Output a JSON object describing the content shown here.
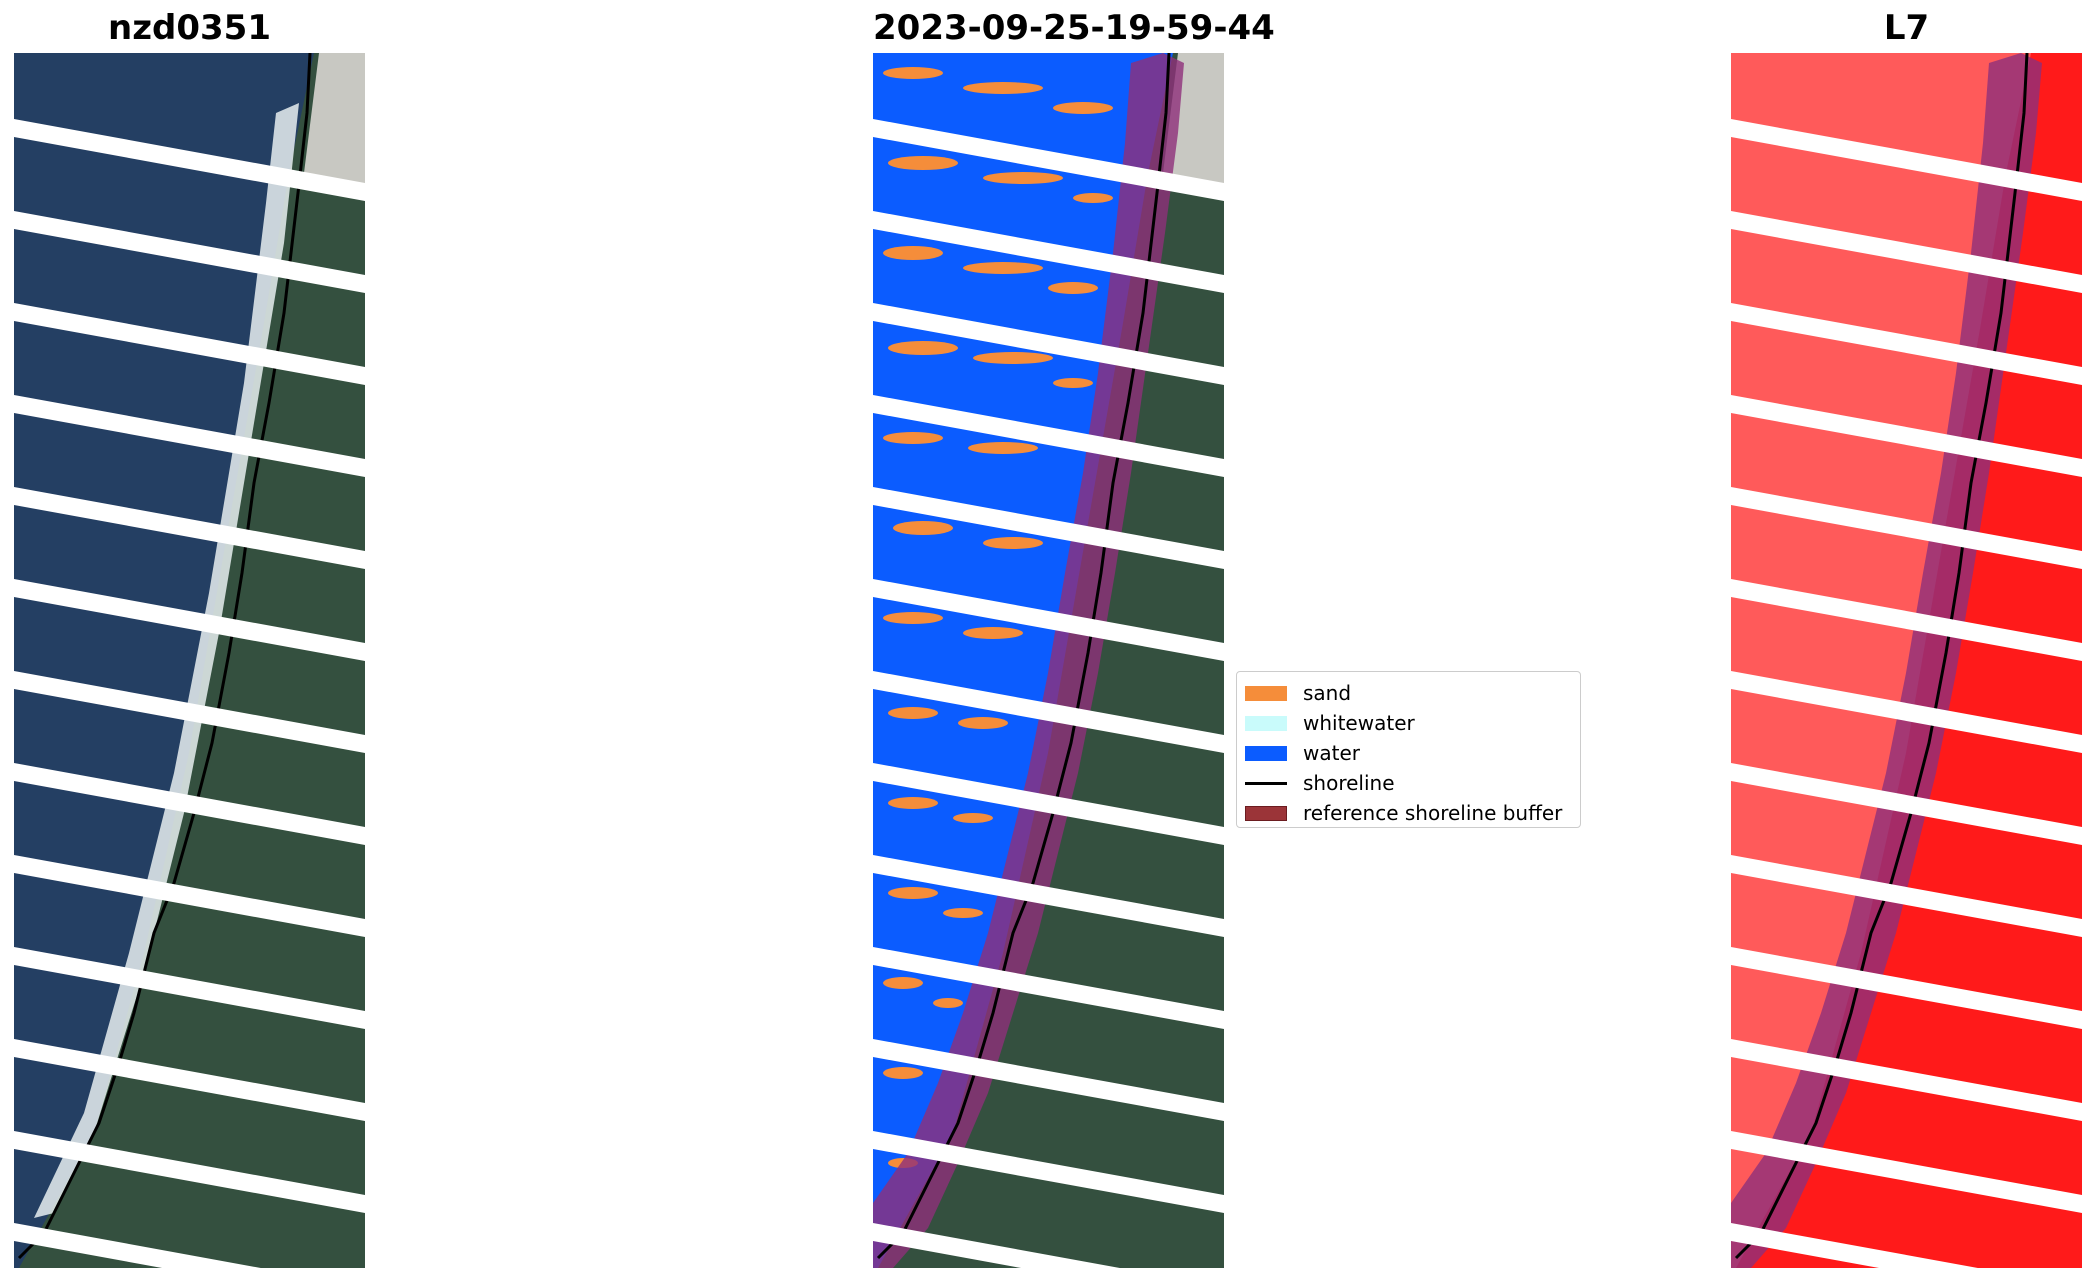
{
  "panels": [
    {
      "title": "nzd0351"
    },
    {
      "title": "2023-09-25-19-59-44"
    },
    {
      "title": "L7"
    }
  ],
  "legend": {
    "items": [
      {
        "label": "sand",
        "color": "#f58d3a",
        "kind": "patch"
      },
      {
        "label": "whitewater",
        "color": "#c9fbfb",
        "kind": "patch"
      },
      {
        "label": "water",
        "color": "#0b5cff",
        "kind": "patch"
      },
      {
        "label": "shoreline",
        "color": "#000000",
        "kind": "line"
      },
      {
        "label": "reference shoreline buffer",
        "color": "#9b3438",
        "kind": "patch"
      }
    ]
  },
  "colors": {
    "ocean": "#1e3a5f",
    "land": "#2f4a3c",
    "buffer": "#8e2f7a",
    "classified_water": "#0b5cff",
    "classified_sand": "#f58d3a",
    "false_color": "#ff2a2a"
  }
}
